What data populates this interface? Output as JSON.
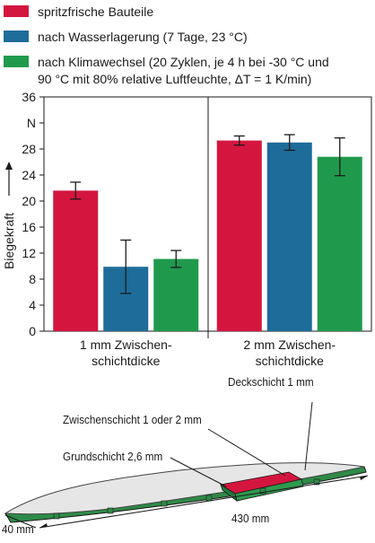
{
  "chart_data": {
    "type": "bar",
    "categories": [
      {
        "line1": "1 mm Zwischen-",
        "line2": "schichtdicke"
      },
      {
        "line1": "2 mm Zwischen-",
        "line2": "schichtdicke"
      }
    ],
    "series": [
      {
        "name": "spritzfrische Bauteile",
        "color": "#d4163f",
        "values": [
          21.6,
          29.3
        ],
        "error": [
          1.3,
          0.7
        ]
      },
      {
        "name": "nach Wasserlagerung (7 Tage, 23 °C)",
        "color": "#1d6c99",
        "values": [
          9.9,
          29.0
        ],
        "error": [
          4.1,
          1.2
        ]
      },
      {
        "name": "nach Klimawechsel (20 Zyklen, je 4 h bei -30 °C und 90 °C mit 80% relative Luftfeuchte, ΔT = 1 K/min)",
        "color": "#1f9a4d",
        "values": [
          11.1,
          26.8
        ],
        "error": [
          1.3,
          2.9
        ]
      }
    ],
    "legend_lines": [
      [
        "spritzfrische Bauteile"
      ],
      [
        "nach Wasserlagerung (7 Tage, 23 °C)"
      ],
      [
        "nach Klimawechsel (20 Zyklen, je 4 h bei -30 °C und",
        "90 °C mit 80% relative Luftfeuchte, ΔT = 1 K/min)"
      ]
    ],
    "yticks": [
      "0",
      "4",
      "8",
      "12",
      "16",
      "20",
      "24",
      "28",
      "N",
      "36"
    ],
    "ylim": [
      0,
      36
    ],
    "ylabel": "Biegekraft",
    "legend_position": "top",
    "grid": false
  },
  "diagram": {
    "deckschicht": "Deckschicht 1 mm",
    "zwischenschicht": "Zwischenschicht 1 oder 2 mm",
    "grundschicht": "Grundschicht 2,6 mm",
    "width_label": "40 mm",
    "length_label": "430 mm"
  }
}
